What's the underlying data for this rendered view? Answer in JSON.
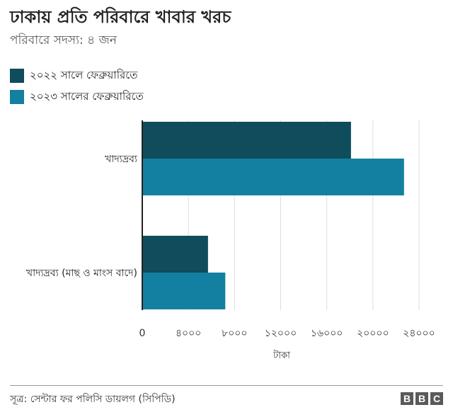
{
  "header": {
    "title": "ঢাকায় প্রতি পরিবারে খাবার খরচ",
    "subtitle": "পরিবারে সদস্য: ৪ জন"
  },
  "chart_data": {
    "type": "bar",
    "orientation": "horizontal",
    "title": "ঢাকায় প্রতি পরিবারে খাবার খরচ",
    "subtitle": "পরিবারে সদস্য: ৪ জন",
    "categories": [
      "খাদ্যদ্রব্য",
      "খাদ্যদ্রব্য (মাছ ও মাংস বাদে)"
    ],
    "series": [
      {
        "name": "২০২২ সালে ফেব্রুয়ারিতে",
        "color": "#0f4c5c",
        "values": [
          18100,
          5700
        ]
      },
      {
        "name": "২০২৩ সালের ফেব্রুয়ারিতে",
        "color": "#1380a1",
        "values": [
          22700,
          7200
        ]
      }
    ],
    "xlim": [
      0,
      24000
    ],
    "xticks": [
      0,
      4000,
      8000,
      12000,
      16000,
      20000,
      24000
    ],
    "xtick_labels": [
      "0",
      "৪০০০",
      "৮০০০",
      "১২০০০",
      "১৬০০০",
      "২০০০০",
      "২৪০০০"
    ],
    "xlabel": "টাকা",
    "ylabel": "",
    "grid": true,
    "legend_position": "top-left"
  },
  "footer": {
    "source": "সূত্র: সেন্টার ফর পলিসি ডায়লগ (সিপিডি)",
    "logo_letters": [
      "B",
      "B",
      "C"
    ]
  }
}
